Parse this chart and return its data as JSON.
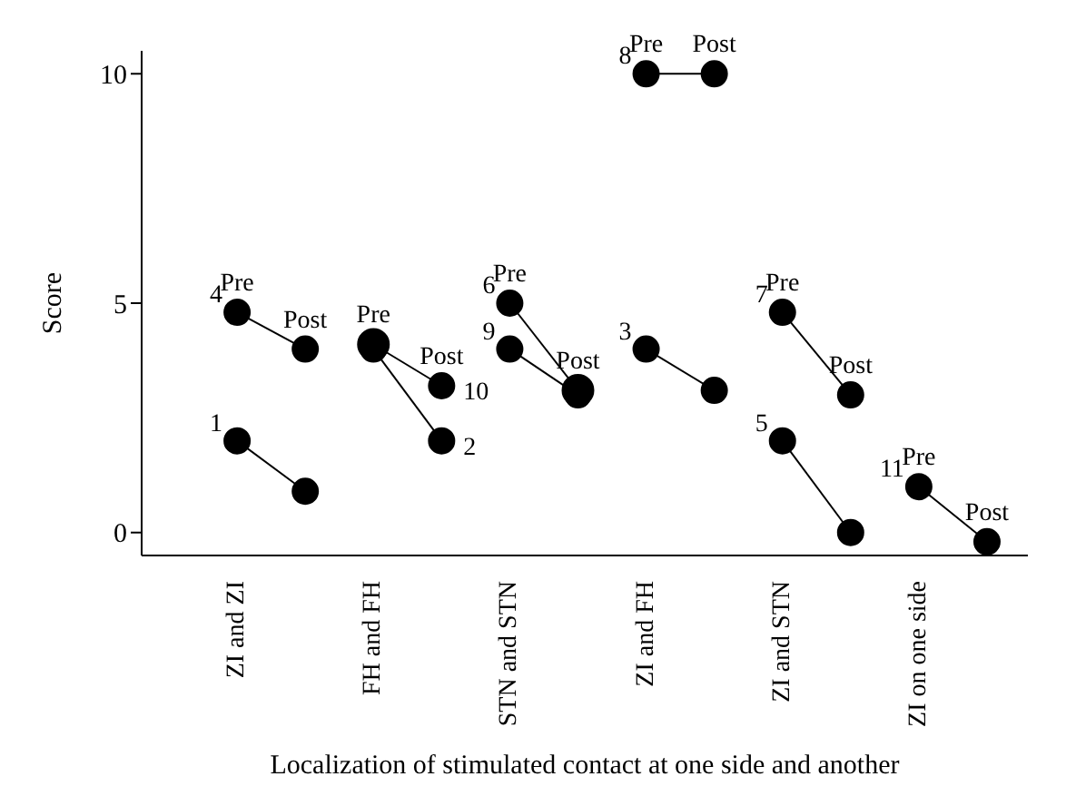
{
  "chart_data": {
    "type": "line",
    "xlabel": "Localization of stimulated contact at one side and another",
    "ylabel": "Score",
    "marker": "circle",
    "legend": false,
    "grid": false,
    "categories": [
      "ZI and ZI",
      null,
      "FH and FH",
      null,
      "STN and STN",
      null,
      "ZI and FH",
      null,
      "ZI and STN",
      null,
      "ZI on one side",
      null
    ],
    "ylim": [
      -0.5,
      10.5
    ],
    "yticks": [
      0,
      5,
      10
    ],
    "series": [
      {
        "name": "4",
        "color": "#000000",
        "values": [
          4.8,
          4,
          null,
          null,
          null,
          null,
          null,
          null,
          null,
          null,
          null,
          null
        ]
      },
      {
        "name": "1",
        "color": "#000000",
        "values": [
          2,
          0.9,
          null,
          null,
          null,
          null,
          null,
          null,
          null,
          null,
          null,
          null
        ]
      },
      {
        "name": "10",
        "color": "#000000",
        "values": [
          null,
          null,
          4.1,
          3.2,
          null,
          null,
          null,
          null,
          null,
          null,
          null,
          null
        ]
      },
      {
        "name": "2",
        "color": "#000000",
        "values": [
          null,
          null,
          4,
          2,
          null,
          null,
          null,
          null,
          null,
          null,
          null,
          null
        ]
      },
      {
        "name": "6",
        "color": "#000000",
        "values": [
          null,
          null,
          null,
          null,
          5,
          3.1,
          null,
          null,
          null,
          null,
          null,
          null
        ]
      },
      {
        "name": "9",
        "color": "#000000",
        "values": [
          null,
          null,
          null,
          null,
          4,
          3,
          null,
          null,
          null,
          null,
          null,
          null
        ]
      },
      {
        "name": "8",
        "color": "#000000",
        "values": [
          null,
          null,
          null,
          null,
          null,
          null,
          10,
          10,
          null,
          null,
          null,
          null
        ]
      },
      {
        "name": "3",
        "color": "#000000",
        "values": [
          null,
          null,
          null,
          null,
          null,
          null,
          4,
          3.1,
          null,
          null,
          null,
          null
        ]
      },
      {
        "name": "7",
        "color": "#000000",
        "values": [
          null,
          null,
          null,
          null,
          null,
          null,
          null,
          null,
          4.8,
          3,
          null,
          null
        ]
      },
      {
        "name": "5",
        "color": "#000000",
        "values": [
          null,
          null,
          null,
          null,
          null,
          null,
          null,
          null,
          2,
          0,
          null,
          null
        ]
      },
      {
        "name": "11",
        "color": "#000000",
        "values": [
          null,
          null,
          null,
          null,
          null,
          null,
          null,
          null,
          null,
          null,
          1,
          -0.2
        ]
      }
    ],
    "annotations": [
      {
        "text": "Pre",
        "x": "ZI and ZI",
        "y": 4.8
      },
      {
        "text": "Post",
        "y": 4
      },
      {
        "text": "Pre",
        "x": "FH and FH",
        "y": 4.1
      },
      {
        "text": "Post",
        "y": 3.2
      },
      {
        "text": "Pre",
        "x": "STN and STN",
        "y": 5
      },
      {
        "text": "Post",
        "y": 3.1
      },
      {
        "text": "Pre",
        "x": "ZI and FH",
        "y": 10
      },
      {
        "text": "Post",
        "y": 10
      },
      {
        "text": "Pre",
        "x": "ZI and STN",
        "y": 4.8
      },
      {
        "text": "Post",
        "y": 3
      },
      {
        "text": "Pre",
        "x": "ZI on one side",
        "y": 1
      },
      {
        "text": "Post",
        "y": -0.2
      }
    ]
  }
}
